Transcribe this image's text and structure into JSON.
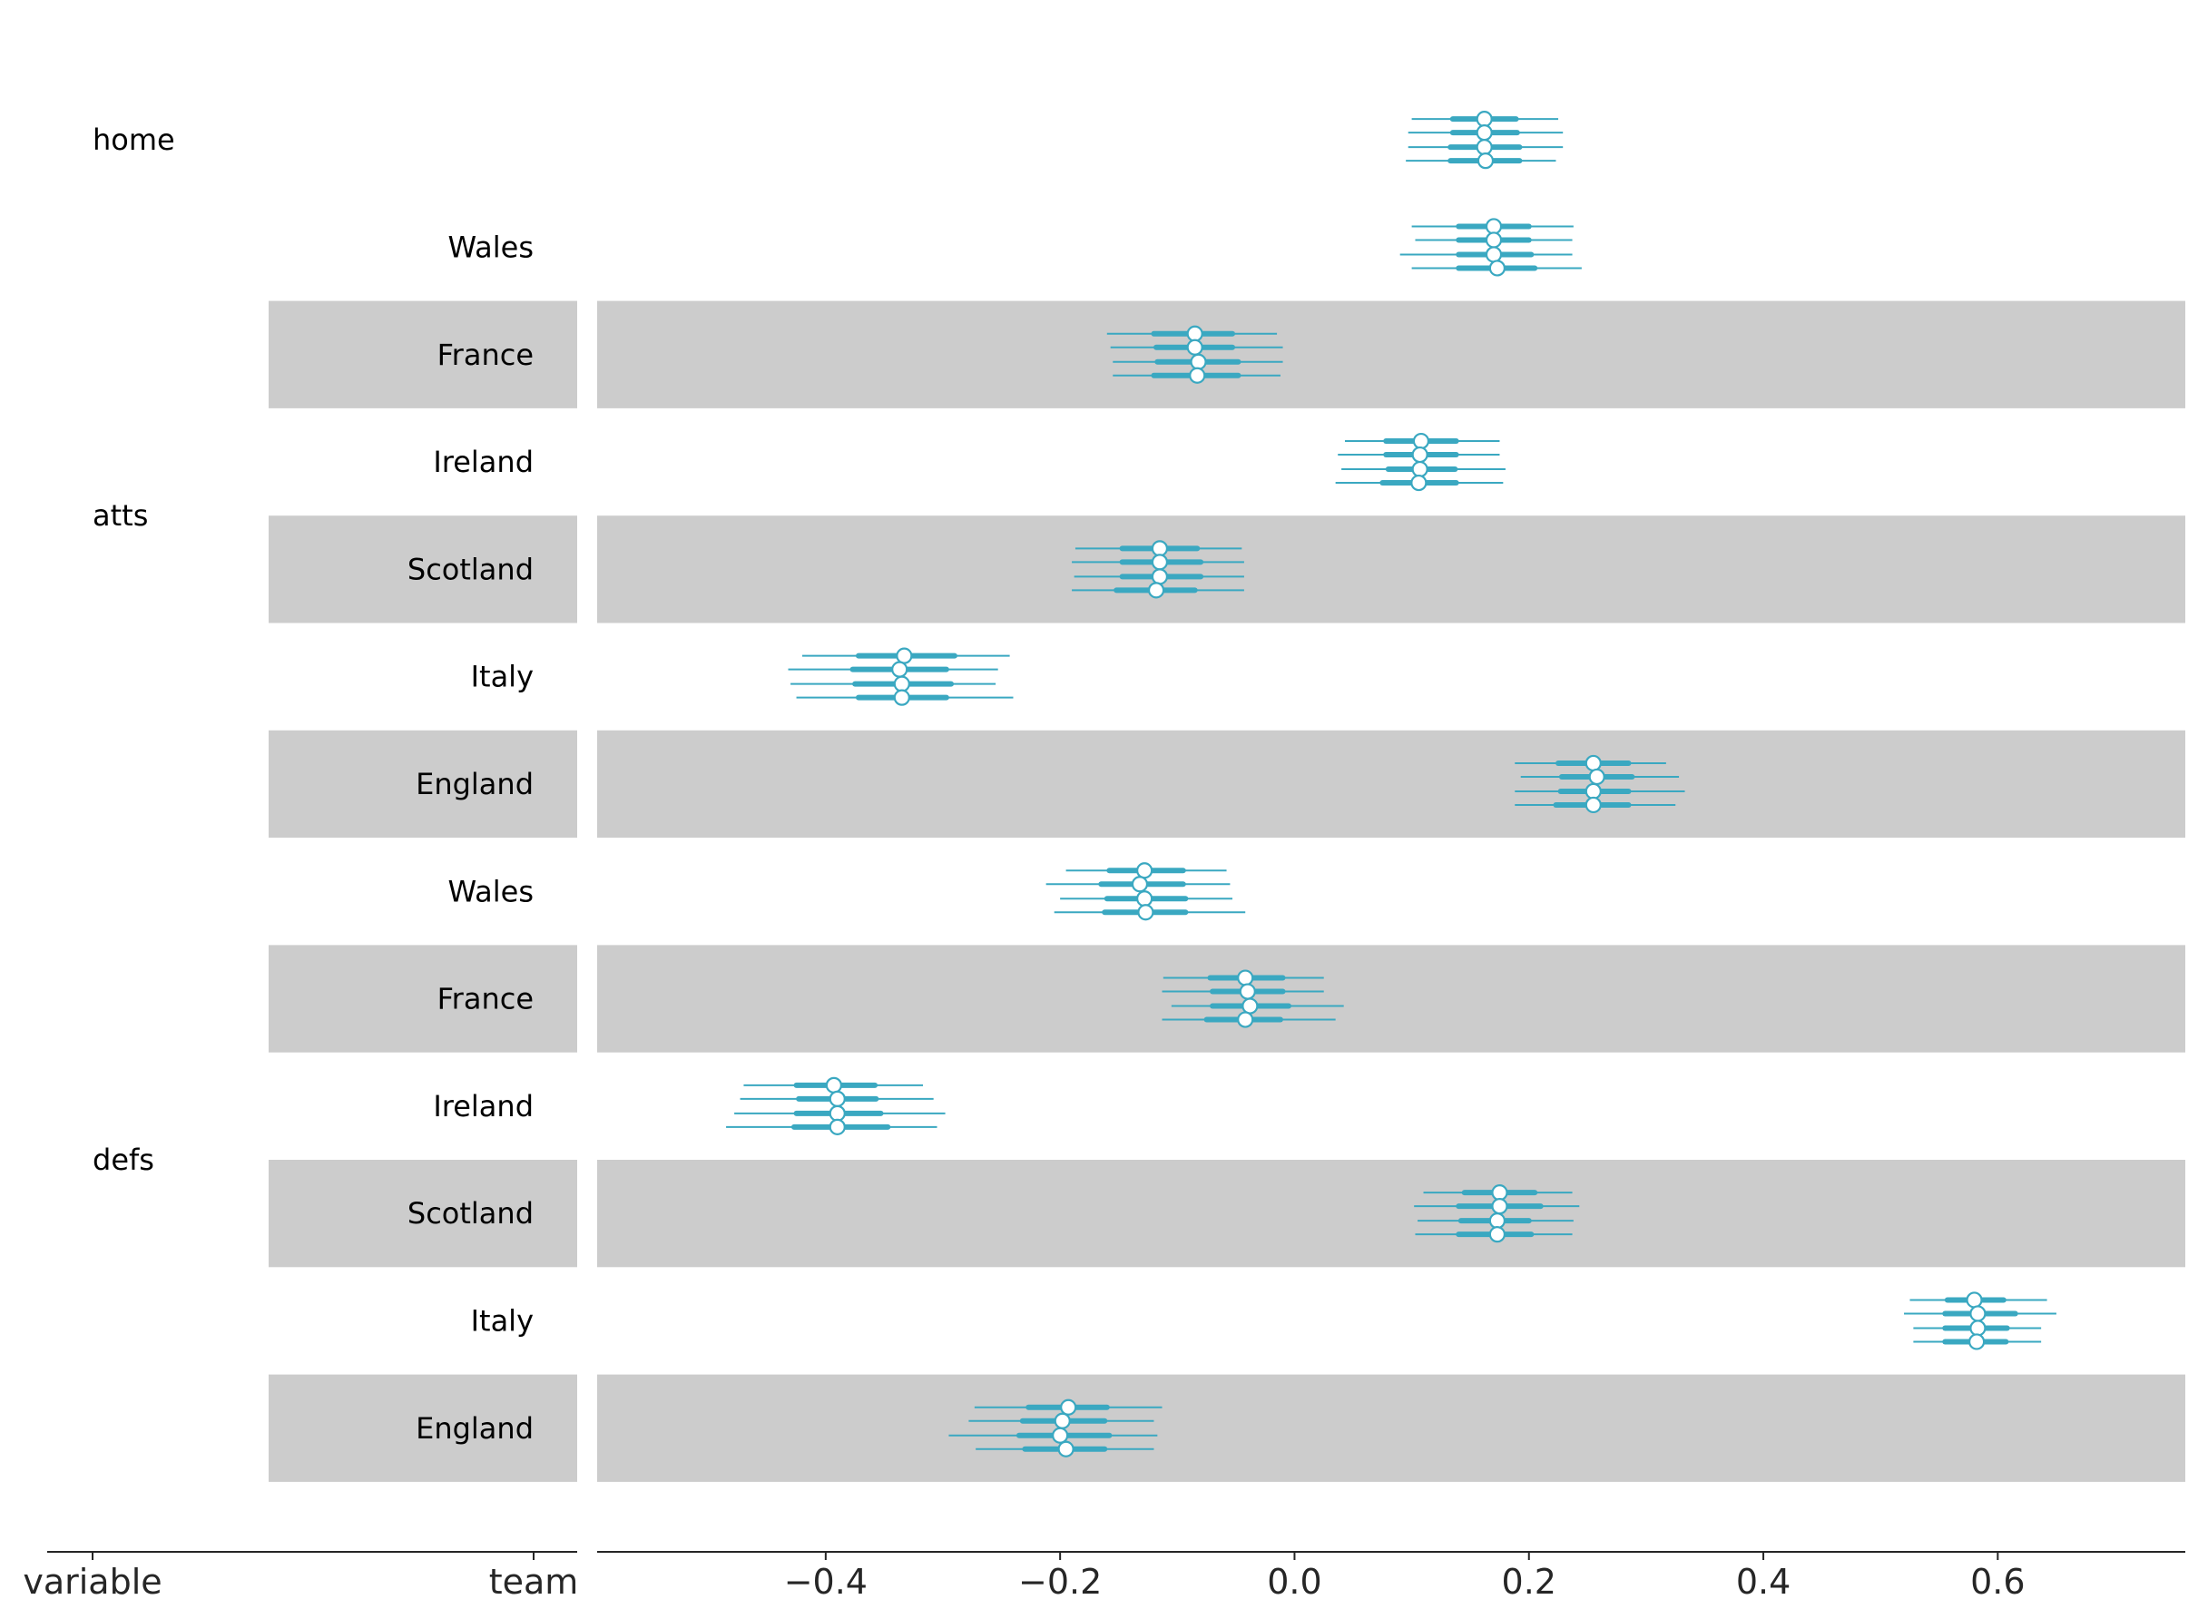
{
  "colors": {
    "series": "#3aa8c1",
    "band": "#cccccc",
    "axis": "#262626",
    "marker_fill": "#ffffff"
  },
  "chart_data": {
    "type": "forest",
    "xlim": [
      -0.595,
      0.76
    ],
    "xticks": [
      -0.4,
      -0.2,
      0.0,
      0.2,
      0.4,
      0.6
    ],
    "xtick_labels": [
      "−0.4",
      "−0.2",
      "0.0",
      "0.2",
      "0.4",
      "0.6"
    ],
    "column_labels": [
      "variable",
      "team"
    ],
    "rows": [
      {
        "variable": "home",
        "team": "",
        "band": false,
        "chains": [
          {
            "mean": 0.162,
            "hdi50": [
              0.135,
              0.189
            ],
            "hdi94": [
              0.1,
              0.225
            ]
          },
          {
            "mean": 0.162,
            "hdi50": [
              0.135,
              0.19
            ],
            "hdi94": [
              0.097,
              0.229
            ]
          },
          {
            "mean": 0.162,
            "hdi50": [
              0.133,
              0.192
            ],
            "hdi94": [
              0.097,
              0.229
            ]
          },
          {
            "mean": 0.163,
            "hdi50": [
              0.133,
              0.192
            ],
            "hdi94": [
              0.095,
              0.223
            ]
          }
        ]
      },
      {
        "variable": "",
        "team": "Wales",
        "band": false,
        "chains": [
          {
            "mean": 0.17,
            "hdi50": [
              0.14,
              0.2
            ],
            "hdi94": [
              0.1,
              0.238
            ]
          },
          {
            "mean": 0.17,
            "hdi50": [
              0.14,
              0.2
            ],
            "hdi94": [
              0.103,
              0.237
            ]
          },
          {
            "mean": 0.17,
            "hdi50": [
              0.14,
              0.202
            ],
            "hdi94": [
              0.09,
              0.237
            ]
          },
          {
            "mean": 0.173,
            "hdi50": [
              0.14,
              0.205
            ],
            "hdi94": [
              0.1,
              0.245
            ]
          }
        ]
      },
      {
        "variable": "",
        "team": "France",
        "band": true,
        "chains": [
          {
            "mean": -0.085,
            "hdi50": [
              -0.12,
              -0.053
            ],
            "hdi94": [
              -0.16,
              -0.015
            ]
          },
          {
            "mean": -0.085,
            "hdi50": [
              -0.118,
              -0.053
            ],
            "hdi94": [
              -0.157,
              -0.01
            ]
          },
          {
            "mean": -0.082,
            "hdi50": [
              -0.117,
              -0.048
            ],
            "hdi94": [
              -0.155,
              -0.01
            ]
          },
          {
            "mean": -0.083,
            "hdi50": [
              -0.12,
              -0.048
            ],
            "hdi94": [
              -0.155,
              -0.012
            ]
          }
        ]
      },
      {
        "variable": "atts",
        "team": "Ireland",
        "band": false,
        "chains": [
          {
            "mean": 0.108,
            "hdi50": [
              0.078,
              0.138
            ],
            "hdi94": [
              0.043,
              0.175
            ]
          },
          {
            "mean": 0.107,
            "hdi50": [
              0.078,
              0.138
            ],
            "hdi94": [
              0.037,
              0.175
            ]
          },
          {
            "mean": 0.107,
            "hdi50": [
              0.08,
              0.137
            ],
            "hdi94": [
              0.04,
              0.18
            ]
          },
          {
            "mean": 0.106,
            "hdi50": [
              0.075,
              0.138
            ],
            "hdi94": [
              0.035,
              0.178
            ]
          }
        ]
      },
      {
        "variable": "",
        "team": "Scotland",
        "band": true,
        "chains": [
          {
            "mean": -0.115,
            "hdi50": [
              -0.147,
              -0.083
            ],
            "hdi94": [
              -0.187,
              -0.045
            ]
          },
          {
            "mean": -0.115,
            "hdi50": [
              -0.147,
              -0.08
            ],
            "hdi94": [
              -0.19,
              -0.043
            ]
          },
          {
            "mean": -0.115,
            "hdi50": [
              -0.147,
              -0.08
            ],
            "hdi94": [
              -0.188,
              -0.043
            ]
          },
          {
            "mean": -0.118,
            "hdi50": [
              -0.152,
              -0.085
            ],
            "hdi94": [
              -0.19,
              -0.043
            ]
          }
        ]
      },
      {
        "variable": "",
        "team": "Italy",
        "band": false,
        "chains": [
          {
            "mean": -0.333,
            "hdi50": [
              -0.372,
              -0.29
            ],
            "hdi94": [
              -0.42,
              -0.243
            ]
          },
          {
            "mean": -0.337,
            "hdi50": [
              -0.377,
              -0.297
            ],
            "hdi94": [
              -0.432,
              -0.253
            ]
          },
          {
            "mean": -0.335,
            "hdi50": [
              -0.375,
              -0.293
            ],
            "hdi94": [
              -0.43,
              -0.255
            ]
          },
          {
            "mean": -0.335,
            "hdi50": [
              -0.372,
              -0.297
            ],
            "hdi94": [
              -0.425,
              -0.24
            ]
          }
        ]
      },
      {
        "variable": "",
        "team": "England",
        "band": true,
        "chains": [
          {
            "mean": 0.255,
            "hdi50": [
              0.225,
              0.285
            ],
            "hdi94": [
              0.188,
              0.317
            ]
          },
          {
            "mean": 0.258,
            "hdi50": [
              0.228,
              0.288
            ],
            "hdi94": [
              0.193,
              0.328
            ]
          },
          {
            "mean": 0.255,
            "hdi50": [
              0.227,
              0.285
            ],
            "hdi94": [
              0.188,
              0.333
            ]
          },
          {
            "mean": 0.255,
            "hdi50": [
              0.223,
              0.285
            ],
            "hdi94": [
              0.188,
              0.325
            ]
          }
        ]
      },
      {
        "variable": "",
        "team": "Wales",
        "band": false,
        "chains": [
          {
            "mean": -0.128,
            "hdi50": [
              -0.158,
              -0.095
            ],
            "hdi94": [
              -0.195,
              -0.058
            ]
          },
          {
            "mean": -0.132,
            "hdi50": [
              -0.165,
              -0.095
            ],
            "hdi94": [
              -0.212,
              -0.055
            ]
          },
          {
            "mean": -0.128,
            "hdi50": [
              -0.16,
              -0.093
            ],
            "hdi94": [
              -0.2,
              -0.053
            ]
          },
          {
            "mean": -0.127,
            "hdi50": [
              -0.162,
              -0.093
            ],
            "hdi94": [
              -0.205,
              -0.042
            ]
          }
        ]
      },
      {
        "variable": "",
        "team": "France",
        "band": true,
        "chains": [
          {
            "mean": -0.042,
            "hdi50": [
              -0.072,
              -0.01
            ],
            "hdi94": [
              -0.112,
              0.025
            ]
          },
          {
            "mean": -0.04,
            "hdi50": [
              -0.07,
              -0.01
            ],
            "hdi94": [
              -0.113,
              0.025
            ]
          },
          {
            "mean": -0.038,
            "hdi50": [
              -0.07,
              -0.005
            ],
            "hdi94": [
              -0.105,
              0.042
            ]
          },
          {
            "mean": -0.042,
            "hdi50": [
              -0.075,
              -0.012
            ],
            "hdi94": [
              -0.113,
              0.035
            ]
          }
        ]
      },
      {
        "variable": "",
        "team": "Ireland",
        "band": false,
        "chains": [
          {
            "mean": -0.393,
            "hdi50": [
              -0.425,
              -0.358
            ],
            "hdi94": [
              -0.47,
              -0.317
            ]
          },
          {
            "mean": -0.39,
            "hdi50": [
              -0.423,
              -0.357
            ],
            "hdi94": [
              -0.473,
              -0.308
            ]
          },
          {
            "mean": -0.39,
            "hdi50": [
              -0.425,
              -0.353
            ],
            "hdi94": [
              -0.478,
              -0.298
            ]
          },
          {
            "mean": -0.39,
            "hdi50": [
              -0.427,
              -0.347
            ],
            "hdi94": [
              -0.485,
              -0.305
            ]
          }
        ]
      },
      {
        "variable": "defs",
        "team": "Scotland",
        "band": true,
        "chains": [
          {
            "mean": 0.175,
            "hdi50": [
              0.145,
              0.205
            ],
            "hdi94": [
              0.11,
              0.237
            ]
          },
          {
            "mean": 0.175,
            "hdi50": [
              0.14,
              0.21
            ],
            "hdi94": [
              0.102,
              0.243
            ]
          },
          {
            "mean": 0.173,
            "hdi50": [
              0.142,
              0.2
            ],
            "hdi94": [
              0.105,
              0.238
            ]
          },
          {
            "mean": 0.173,
            "hdi50": [
              0.14,
              0.202
            ],
            "hdi94": [
              0.103,
              0.237
            ]
          }
        ]
      },
      {
        "variable": "",
        "team": "Italy",
        "band": false,
        "chains": [
          {
            "mean": 0.58,
            "hdi50": [
              0.557,
              0.605
            ],
            "hdi94": [
              0.525,
              0.642
            ]
          },
          {
            "mean": 0.583,
            "hdi50": [
              0.555,
              0.615
            ],
            "hdi94": [
              0.52,
              0.65
            ]
          },
          {
            "mean": 0.583,
            "hdi50": [
              0.555,
              0.608
            ],
            "hdi94": [
              0.528,
              0.637
            ]
          },
          {
            "mean": 0.582,
            "hdi50": [
              0.555,
              0.607
            ],
            "hdi94": [
              0.528,
              0.637
            ]
          }
        ]
      },
      {
        "variable": "",
        "team": "England",
        "band": true,
        "chains": [
          {
            "mean": -0.193,
            "hdi50": [
              -0.227,
              -0.16
            ],
            "hdi94": [
              -0.273,
              -0.113
            ]
          },
          {
            "mean": -0.198,
            "hdi50": [
              -0.232,
              -0.162
            ],
            "hdi94": [
              -0.278,
              -0.12
            ]
          },
          {
            "mean": -0.2,
            "hdi50": [
              -0.235,
              -0.158
            ],
            "hdi94": [
              -0.295,
              -0.117
            ]
          },
          {
            "mean": -0.195,
            "hdi50": [
              -0.23,
              -0.162
            ],
            "hdi94": [
              -0.272,
              -0.12
            ]
          }
        ]
      }
    ]
  }
}
